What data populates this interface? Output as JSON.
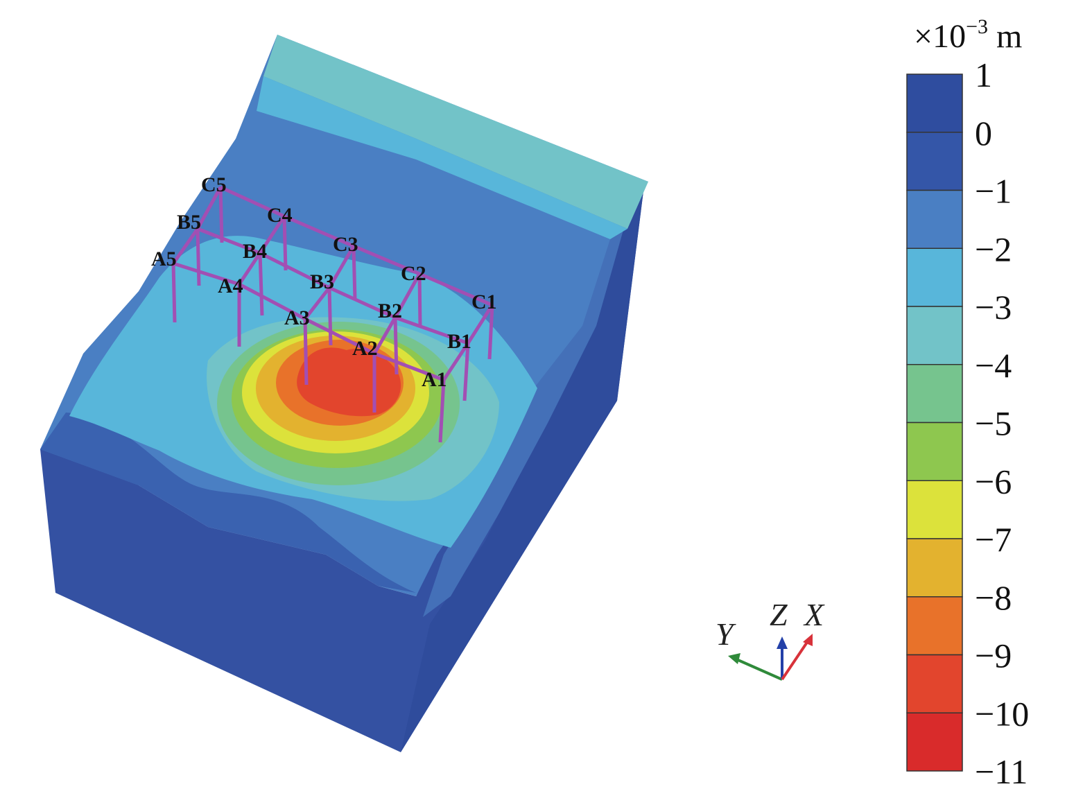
{
  "legend": {
    "unit_prefix": "×10",
    "unit_exponent": "−3",
    "unit_suffix": " m",
    "ticks": [
      "1",
      "0",
      "−1",
      "−2",
      "−3",
      "−4",
      "−5",
      "−6",
      "−7",
      "−8",
      "−9",
      "−10",
      "−11"
    ],
    "band_colors": [
      "#2f4d9f",
      "#3456a8",
      "#4a7fc3",
      "#58b6da",
      "#72c3c8",
      "#76c48e",
      "#8ec74f",
      "#dce23b",
      "#e3b22f",
      "#e8722a",
      "#e2452d",
      "#d92b2b"
    ]
  },
  "piles": {
    "labels": [
      "A1",
      "A2",
      "A3",
      "A4",
      "A5",
      "B1",
      "B2",
      "B3",
      "B4",
      "B5",
      "C1",
      "C2",
      "C3",
      "C4",
      "C5"
    ],
    "color": "#a24fb3"
  },
  "axes": {
    "x": "X",
    "y": "Y",
    "z": "Z",
    "x_color": "#d8323a",
    "y_color": "#2f8a3a",
    "z_color": "#2340a8"
  }
}
